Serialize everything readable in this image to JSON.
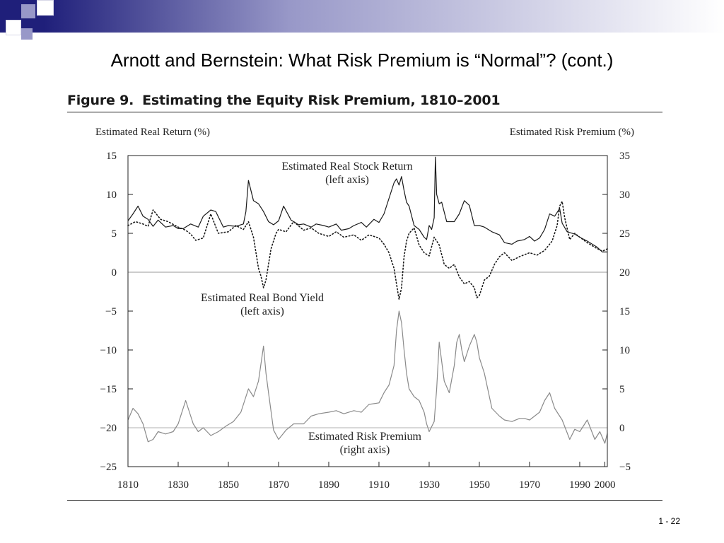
{
  "slide": {
    "title": "Arnott and Bernstein: What Risk Premium is “Normal”? (cont.)",
    "page_number": "1 - 22",
    "accent_colors": [
      "#1f1f7a",
      "#9898c8",
      "#ffffff"
    ]
  },
  "figure": {
    "label": "Figure 9.",
    "title": "Estimating the Equity Risk Premium, 1810–2001"
  },
  "chart_data": {
    "type": "line",
    "left_axis_label": "Estimated Real Return (%)",
    "right_axis_label": "Estimated Risk Premium (%)",
    "left_ylim": [
      -25,
      15
    ],
    "right_ylim": [
      -5,
      35
    ],
    "xlim": [
      1810,
      2001
    ],
    "x_ticks": [
      1810,
      1830,
      1850,
      1870,
      1890,
      1910,
      1930,
      1950,
      1970,
      1990,
      2000
    ],
    "left_ticks": [
      "15",
      "10",
      "5",
      "0",
      "−5",
      "−10",
      "−15",
      "−20",
      "−25"
    ],
    "right_ticks": [
      "35",
      "30",
      "25",
      "20",
      "15",
      "10",
      "5",
      "0",
      "−5"
    ],
    "left_tick_values": [
      15,
      10,
      5,
      0,
      -5,
      -10,
      -15,
      -20,
      -25
    ],
    "right_tick_values": [
      35,
      30,
      25,
      20,
      15,
      10,
      5,
      0,
      -5
    ],
    "reference_lines": [
      0
    ],
    "annotations": [
      {
        "line1": "Estimated Real Stock Return",
        "line2": "(left axis)"
      },
      {
        "line1": "Estimated Real Bond Yield",
        "line2": "(left axis)"
      },
      {
        "line1": "Estimated Risk Premium",
        "line2": "(right axis)"
      }
    ],
    "series": [
      {
        "axis": "left",
        "style": "solid",
        "color": "#1a1a1a",
        "x": [
          1810,
          1812,
          1814,
          1816,
          1818,
          1820,
          1822,
          1825,
          1828,
          1830,
          1832,
          1835,
          1838,
          1840,
          1843,
          1845,
          1848,
          1850,
          1853,
          1856,
          1857,
          1858,
          1860,
          1862,
          1864,
          1866,
          1868,
          1870,
          1872,
          1875,
          1878,
          1880,
          1883,
          1885,
          1888,
          1890,
          1893,
          1895,
          1898,
          1900,
          1903,
          1905,
          1908,
          1910,
          1912,
          1914,
          1916,
          1917,
          1918,
          1919,
          1920,
          1921,
          1922,
          1924,
          1926,
          1928,
          1929,
          1930,
          1931,
          1932,
          1932.5,
          1933,
          1934,
          1935,
          1937,
          1940,
          1942,
          1944,
          1946,
          1948,
          1950,
          1952,
          1955,
          1958,
          1960,
          1963,
          1965,
          1968,
          1970,
          1972,
          1974,
          1976,
          1978,
          1980,
          1982,
          1983,
          1985,
          1988,
          1990,
          1993,
          1995,
          1997,
          1999,
          2001
        ],
        "y": [
          6.6,
          7.5,
          8.5,
          7.2,
          6.8,
          5.9,
          6.7,
          5.8,
          6.0,
          5.6,
          5.6,
          6.2,
          5.8,
          7.2,
          8.0,
          7.8,
          5.8,
          6.0,
          5.9,
          6.2,
          7.8,
          11.8,
          9.2,
          8.8,
          7.8,
          6.5,
          6.1,
          6.6,
          8.5,
          6.7,
          6.1,
          6.2,
          5.8,
          6.2,
          6.0,
          5.8,
          6.2,
          5.4,
          5.6,
          6.0,
          6.4,
          5.8,
          6.8,
          6.4,
          7.5,
          9.5,
          11.5,
          12.0,
          11.2,
          12.3,
          10.5,
          9.0,
          8.5,
          6.0,
          5.5,
          4.5,
          4.2,
          6.0,
          5.5,
          7.0,
          14.8,
          10.0,
          8.8,
          9.0,
          6.5,
          6.5,
          7.5,
          9.2,
          8.6,
          6.0,
          6.0,
          5.8,
          5.2,
          4.8,
          3.8,
          3.6,
          4.0,
          4.2,
          4.6,
          4.0,
          4.4,
          5.5,
          7.5,
          7.2,
          8.2,
          6.3,
          5.2,
          4.9,
          4.5,
          4.0,
          3.6,
          3.2,
          2.6,
          2.6
        ]
      },
      {
        "axis": "left",
        "style": "dotted",
        "color": "#1a1a1a",
        "x": [
          1810,
          1813,
          1816,
          1818,
          1820,
          1823,
          1826,
          1830,
          1833,
          1835,
          1837,
          1840,
          1843,
          1846,
          1850,
          1853,
          1856,
          1858,
          1860,
          1862,
          1863,
          1864,
          1865,
          1867,
          1869,
          1870,
          1873,
          1876,
          1880,
          1883,
          1886,
          1890,
          1893,
          1896,
          1900,
          1903,
          1906,
          1910,
          1912,
          1914,
          1915,
          1916,
          1917,
          1918,
          1919,
          1920,
          1921,
          1922,
          1924,
          1926,
          1928,
          1930,
          1932,
          1934,
          1936,
          1938,
          1940,
          1942,
          1944,
          1946,
          1948,
          1949,
          1950,
          1952,
          1954,
          1956,
          1958,
          1960,
          1963,
          1966,
          1970,
          1973,
          1976,
          1979,
          1981,
          1982,
          1983,
          1984,
          1986,
          1988,
          1990,
          1993,
          1996,
          1999,
          2001
        ],
        "y": [
          6.0,
          6.5,
          6.2,
          5.9,
          8.0,
          6.8,
          6.5,
          5.8,
          5.4,
          4.9,
          4.1,
          4.4,
          7.5,
          5.0,
          5.2,
          6.0,
          5.5,
          6.5,
          4.5,
          0.5,
          -0.5,
          -2.0,
          -1.0,
          3.0,
          5.0,
          5.5,
          5.2,
          6.5,
          5.4,
          5.7,
          5.0,
          4.6,
          5.2,
          4.5,
          4.8,
          4.1,
          4.8,
          4.4,
          3.6,
          2.5,
          1.5,
          0.5,
          -1.5,
          -3.5,
          -2.0,
          2.0,
          4.0,
          5.0,
          5.7,
          3.5,
          2.5,
          2.1,
          4.5,
          3.5,
          1.0,
          0.5,
          1.0,
          -0.6,
          -1.5,
          -1.2,
          -2.0,
          -3.3,
          -3.0,
          -1.0,
          -0.5,
          1.0,
          2.0,
          2.5,
          1.5,
          2.0,
          2.5,
          2.2,
          2.8,
          4.0,
          6.0,
          8.5,
          9.1,
          7.0,
          4.2,
          5.0,
          4.5,
          3.8,
          3.2,
          2.7,
          3.0
        ]
      },
      {
        "axis": "right",
        "style": "solid",
        "color": "#8a8a8a",
        "x": [
          1810,
          1812,
          1814,
          1816,
          1818,
          1820,
          1822,
          1825,
          1828,
          1830,
          1833,
          1836,
          1838,
          1840,
          1843,
          1846,
          1849,
          1852,
          1855,
          1858,
          1860,
          1862,
          1864,
          1865,
          1866,
          1868,
          1870,
          1873,
          1876,
          1880,
          1883,
          1886,
          1890,
          1893,
          1896,
          1900,
          1903,
          1906,
          1910,
          1912,
          1914,
          1916,
          1917,
          1918,
          1919,
          1920,
          1921,
          1922,
          1924,
          1926,
          1928,
          1929,
          1930,
          1932,
          1933,
          1934,
          1936,
          1938,
          1940,
          1941,
          1942,
          1943,
          1944,
          1946,
          1948,
          1949,
          1950,
          1952,
          1955,
          1958,
          1960,
          1963,
          1966,
          1968,
          1970,
          1972,
          1974,
          1976,
          1978,
          1980,
          1983,
          1986,
          1988,
          1990,
          1993,
          1996,
          1998,
          2000,
          2001
        ],
        "y": [
          1.0,
          2.5,
          1.8,
          0.5,
          -1.8,
          -1.5,
          -0.5,
          -0.8,
          -0.5,
          0.5,
          3.5,
          0.5,
          -0.5,
          0.0,
          -1.0,
          -0.5,
          0.2,
          0.8,
          2.0,
          5.0,
          4.0,
          6.0,
          10.5,
          7.0,
          4.5,
          -0.3,
          -1.5,
          -0.3,
          0.5,
          0.5,
          1.5,
          1.8,
          2.0,
          2.2,
          1.8,
          2.2,
          2.0,
          3.0,
          3.2,
          4.5,
          5.5,
          8.0,
          12.5,
          15.0,
          13.5,
          10.0,
          7.0,
          5.0,
          4.0,
          3.5,
          2.0,
          0.5,
          -0.5,
          0.8,
          5.0,
          11.0,
          6.0,
          4.5,
          8.0,
          11.0,
          12.0,
          10.0,
          8.5,
          10.5,
          12.0,
          11.0,
          9.0,
          7.0,
          2.5,
          1.5,
          1.0,
          0.8,
          1.2,
          1.2,
          1.0,
          1.5,
          2.0,
          3.5,
          4.5,
          2.5,
          1.0,
          -1.5,
          -0.2,
          -0.5,
          1.0,
          -1.5,
          -0.5,
          -2.0,
          -0.7
        ]
      }
    ]
  }
}
